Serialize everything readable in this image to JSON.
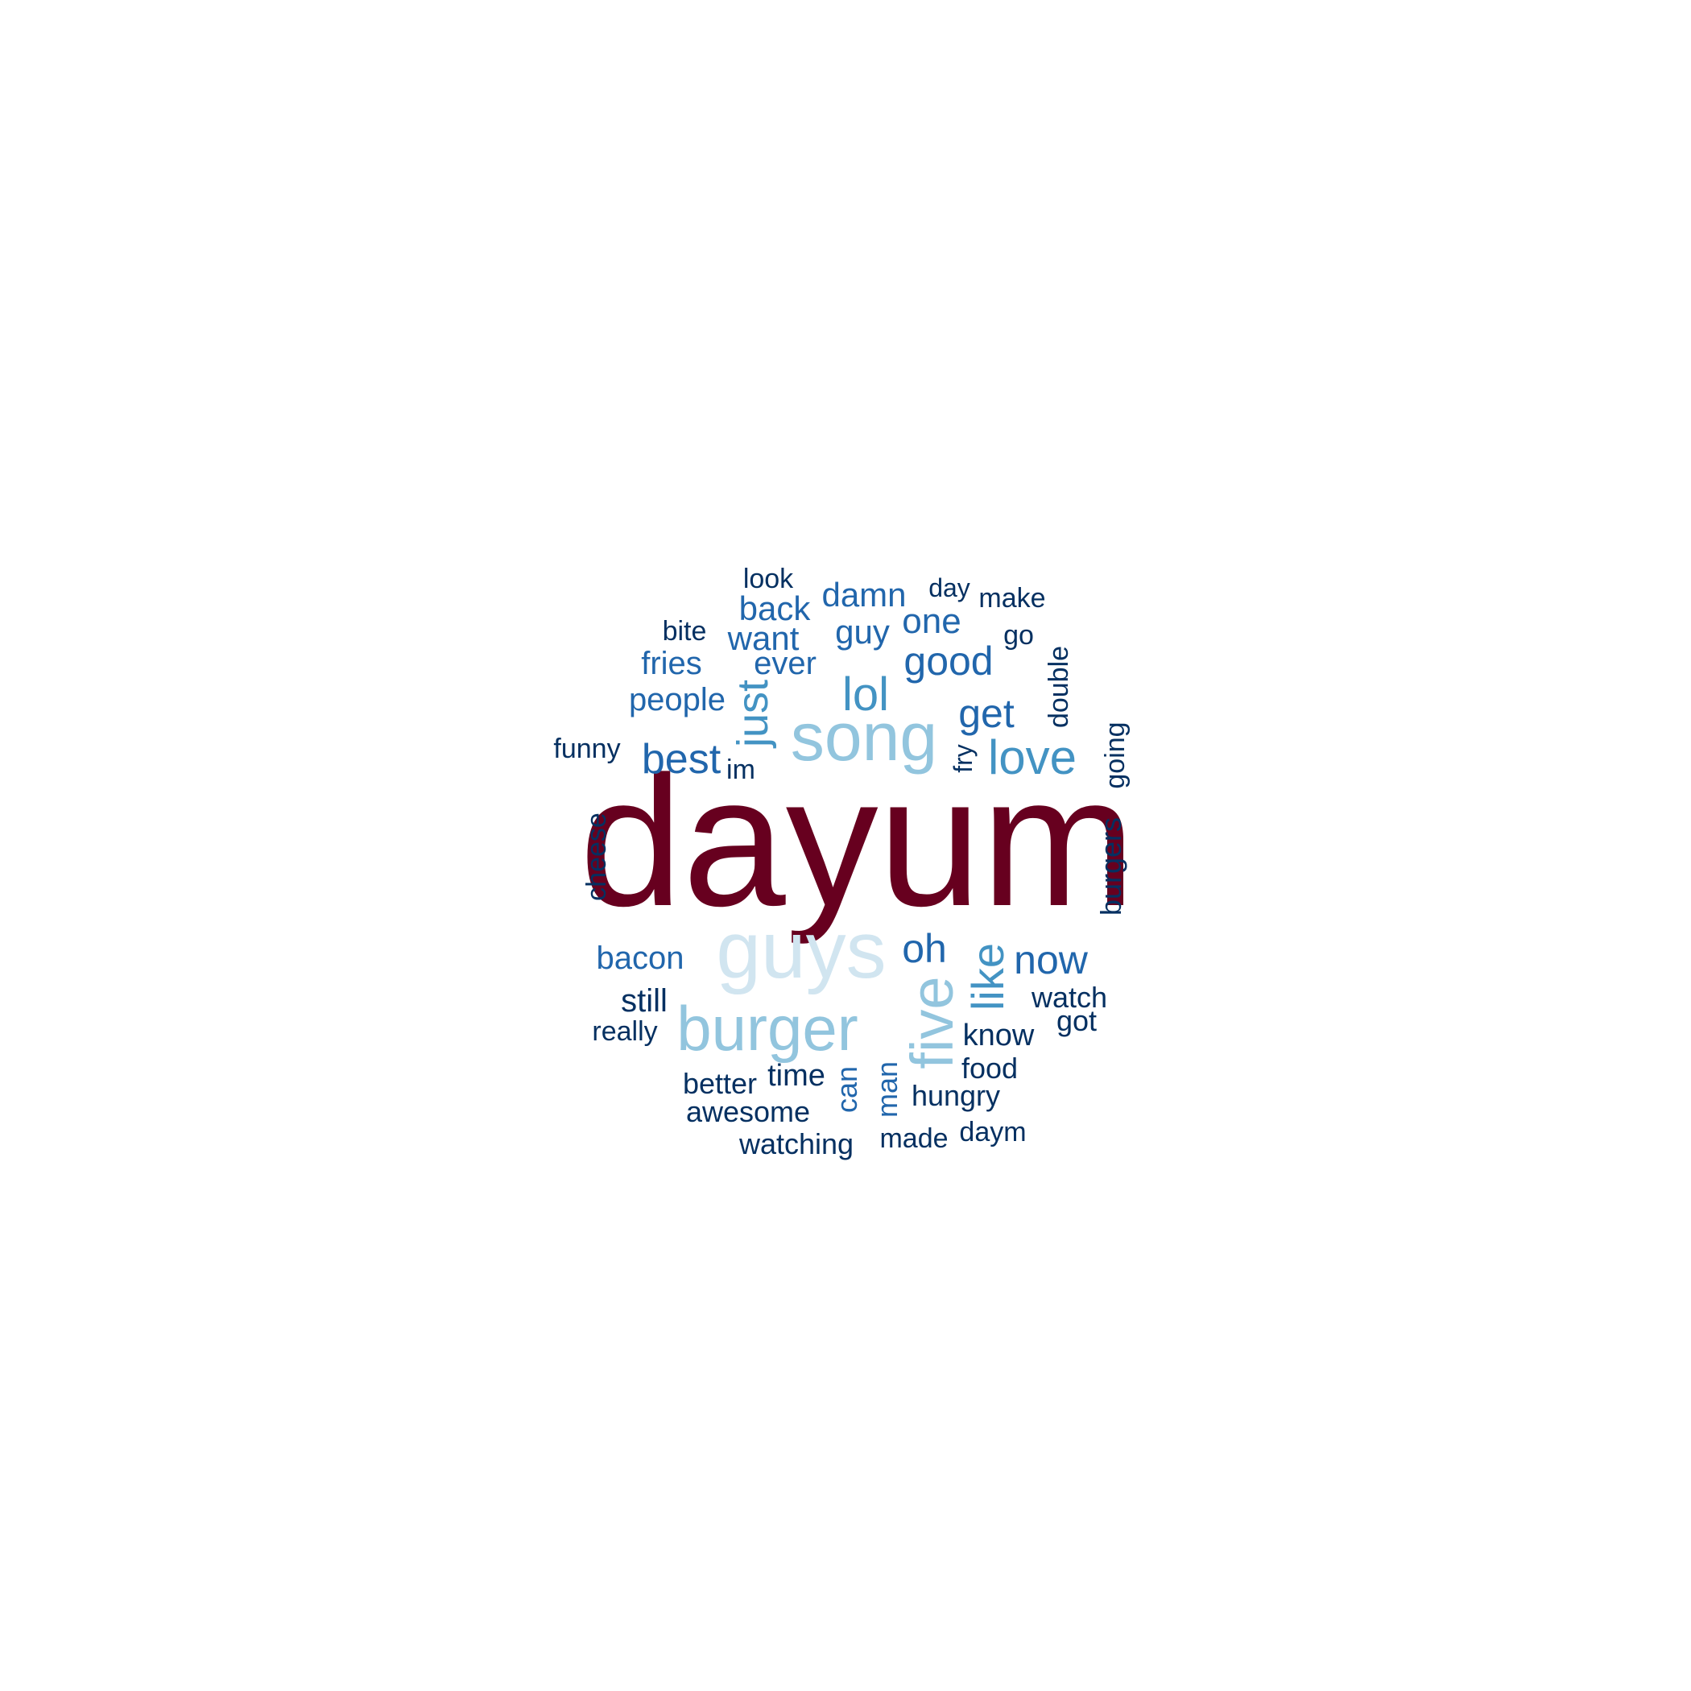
{
  "colors": {
    "background": "#ffffff",
    "dark_red": "#67001f",
    "pale_blue": "#d1e5f0",
    "light_blue": "#92c5de",
    "mid_blue": "#4393c3",
    "blue": "#2166ac",
    "navy": "#053061"
  },
  "words": [
    {
      "text": "dayum",
      "color": "#67001f",
      "rotated": false
    },
    {
      "text": "guys",
      "color": "#d1e5f0",
      "rotated": false
    },
    {
      "text": "song",
      "color": "#92c5de",
      "rotated": false
    },
    {
      "text": "burger",
      "color": "#92c5de",
      "rotated": false
    },
    {
      "text": "five",
      "color": "#92c5de",
      "rotated": true
    },
    {
      "text": "love",
      "color": "#4393c3",
      "rotated": false
    },
    {
      "text": "like",
      "color": "#4393c3",
      "rotated": true
    },
    {
      "text": "lol",
      "color": "#4393c3",
      "rotated": false
    },
    {
      "text": "just",
      "color": "#4393c3",
      "rotated": true
    },
    {
      "text": "good",
      "color": "#2166ac",
      "rotated": false
    },
    {
      "text": "get",
      "color": "#2166ac",
      "rotated": false
    },
    {
      "text": "best",
      "color": "#2166ac",
      "rotated": false
    },
    {
      "text": "oh",
      "color": "#2166ac",
      "rotated": false
    },
    {
      "text": "now",
      "color": "#2166ac",
      "rotated": false
    },
    {
      "text": "damn",
      "color": "#2166ac",
      "rotated": false
    },
    {
      "text": "one",
      "color": "#2166ac",
      "rotated": false
    },
    {
      "text": "back",
      "color": "#2166ac",
      "rotated": false
    },
    {
      "text": "want",
      "color": "#2166ac",
      "rotated": false
    },
    {
      "text": "guy",
      "color": "#2166ac",
      "rotated": false
    },
    {
      "text": "fries",
      "color": "#2166ac",
      "rotated": false
    },
    {
      "text": "ever",
      "color": "#2166ac",
      "rotated": false
    },
    {
      "text": "people",
      "color": "#2166ac",
      "rotated": false
    },
    {
      "text": "bacon",
      "color": "#2166ac",
      "rotated": false
    },
    {
      "text": "still",
      "color": "#053061",
      "rotated": false
    },
    {
      "text": "look",
      "color": "#053061",
      "rotated": false
    },
    {
      "text": "day",
      "color": "#053061",
      "rotated": false
    },
    {
      "text": "make",
      "color": "#053061",
      "rotated": false
    },
    {
      "text": "bite",
      "color": "#053061",
      "rotated": false
    },
    {
      "text": "go",
      "color": "#053061",
      "rotated": false
    },
    {
      "text": "double",
      "color": "#053061",
      "rotated": true
    },
    {
      "text": "funny",
      "color": "#053061",
      "rotated": false
    },
    {
      "text": "im",
      "color": "#053061",
      "rotated": false
    },
    {
      "text": "fry",
      "color": "#053061",
      "rotated": true
    },
    {
      "text": "going",
      "color": "#053061",
      "rotated": true
    },
    {
      "text": "cheese",
      "color": "#053061",
      "rotated": true
    },
    {
      "text": "burgers",
      "color": "#053061",
      "rotated": true
    },
    {
      "text": "watch",
      "color": "#053061",
      "rotated": false
    },
    {
      "text": "got",
      "color": "#053061",
      "rotated": false
    },
    {
      "text": "really",
      "color": "#053061",
      "rotated": false
    },
    {
      "text": "know",
      "color": "#053061",
      "rotated": false
    },
    {
      "text": "food",
      "color": "#053061",
      "rotated": false
    },
    {
      "text": "time",
      "color": "#053061",
      "rotated": false
    },
    {
      "text": "can",
      "color": "#2166ac",
      "rotated": true
    },
    {
      "text": "man",
      "color": "#2166ac",
      "rotated": true
    },
    {
      "text": "better",
      "color": "#053061",
      "rotated": false
    },
    {
      "text": "hungry",
      "color": "#053061",
      "rotated": false
    },
    {
      "text": "awesome",
      "color": "#053061",
      "rotated": false
    },
    {
      "text": "daym",
      "color": "#053061",
      "rotated": false
    },
    {
      "text": "watching",
      "color": "#053061",
      "rotated": false
    },
    {
      "text": "made",
      "color": "#053061",
      "rotated": false
    }
  ]
}
